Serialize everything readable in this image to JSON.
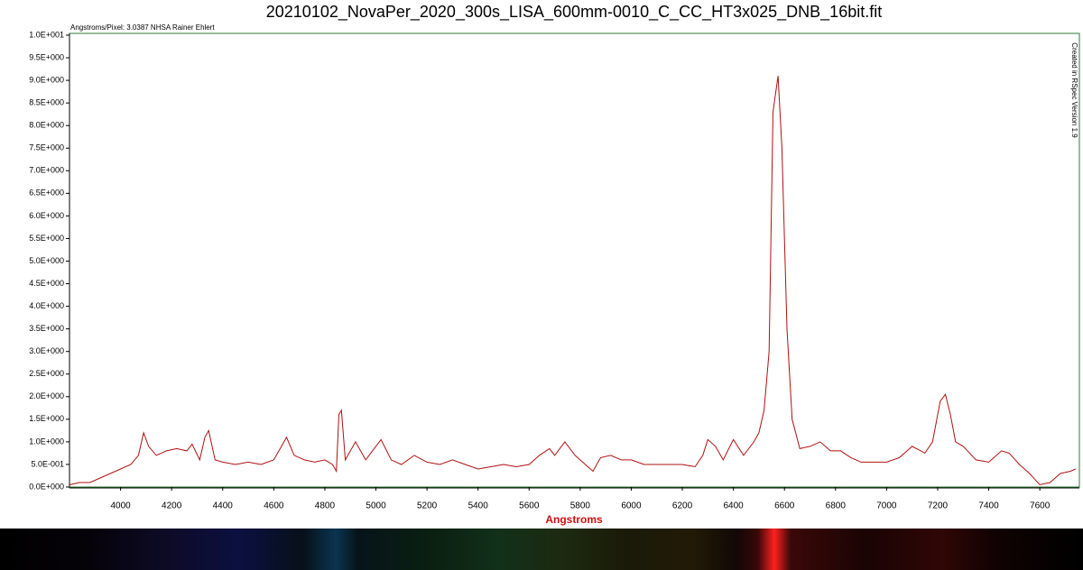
{
  "chart_data": {
    "type": "line",
    "title": "20210102_NovaPer_2020_300s_LISA_600mm-0010_C_CC_HT3x025_DNB_16bit.fit",
    "subtitle": "Angstroms/Pixel: 3.0387 NHSA Rainer Ehlert",
    "annotation": "Created in RSpec Version 1.9",
    "x_label": "Angstroms",
    "xlim": [
      3800,
      7755
    ],
    "xticks": [
      4000,
      4200,
      4400,
      4600,
      4800,
      5000,
      5200,
      5400,
      5600,
      5800,
      6000,
      6200,
      6400,
      6600,
      6800,
      7000,
      7200,
      7400,
      7600
    ],
    "ylim": [
      0,
      10
    ],
    "yticks": [
      {
        "value": 0,
        "label": "0.0E+000"
      },
      {
        "value": 0.5,
        "label": "5.0E-001"
      },
      {
        "value": 1,
        "label": "1.0E+000"
      },
      {
        "value": 1.5,
        "label": "1.5E+000"
      },
      {
        "value": 2,
        "label": "2.0E+000"
      },
      {
        "value": 2.5,
        "label": "2.5E+000"
      },
      {
        "value": 3,
        "label": "3.0E+000"
      },
      {
        "value": 3.5,
        "label": "3.5E+000"
      },
      {
        "value": 4,
        "label": "4.0E+000"
      },
      {
        "value": 4.5,
        "label": "4.5E+000"
      },
      {
        "value": 5,
        "label": "5.0E+000"
      },
      {
        "value": 5.5,
        "label": "5.5E+000"
      },
      {
        "value": 6,
        "label": "6.0E+000"
      },
      {
        "value": 6.5,
        "label": "6.5E+000"
      },
      {
        "value": 7,
        "label": "7.0E+000"
      },
      {
        "value": 7.5,
        "label": "7.5E+000"
      },
      {
        "value": 8,
        "label": "8.0E+000"
      },
      {
        "value": 8.5,
        "label": "8.5E+000"
      },
      {
        "value": 9,
        "label": "9.0E+000"
      },
      {
        "value": 9.5,
        "label": "9.5E+000"
      },
      {
        "value": 10,
        "label": "1.0E+001"
      }
    ],
    "color": "#b01010",
    "x": [
      3800,
      3840,
      3880,
      3920,
      3960,
      4000,
      4040,
      4070,
      4090,
      4110,
      4140,
      4180,
      4220,
      4260,
      4280,
      4310,
      4330,
      4345,
      4370,
      4400,
      4450,
      4500,
      4550,
      4600,
      4640,
      4650,
      4680,
      4720,
      4760,
      4800,
      4830,
      4845,
      4855,
      4865,
      4880,
      4920,
      4960,
      5000,
      5020,
      5060,
      5100,
      5150,
      5200,
      5250,
      5300,
      5350,
      5400,
      5450,
      5500,
      5550,
      5600,
      5640,
      5680,
      5700,
      5740,
      5780,
      5820,
      5850,
      5880,
      5920,
      5960,
      6000,
      6050,
      6100,
      6150,
      6200,
      6250,
      6280,
      6300,
      6330,
      6360,
      6400,
      6440,
      6480,
      6500,
      6520,
      6540,
      6555,
      6575,
      6590,
      6610,
      6630,
      6660,
      6700,
      6740,
      6780,
      6820,
      6860,
      6900,
      6950,
      7000,
      7050,
      7100,
      7150,
      7180,
      7210,
      7230,
      7250,
      7270,
      7300,
      7350,
      7400,
      7450,
      7480,
      7520,
      7560,
      7600,
      7640,
      7680,
      7720,
      7740
    ],
    "values": [
      0.05,
      0.1,
      0.1,
      0.2,
      0.3,
      0.4,
      0.5,
      0.7,
      1.2,
      0.9,
      0.7,
      0.8,
      0.85,
      0.8,
      0.95,
      0.6,
      1.1,
      1.25,
      0.6,
      0.55,
      0.5,
      0.55,
      0.5,
      0.6,
      1.0,
      1.1,
      0.7,
      0.6,
      0.55,
      0.6,
      0.5,
      0.35,
      1.6,
      1.7,
      0.6,
      1.0,
      0.6,
      0.9,
      1.05,
      0.6,
      0.5,
      0.7,
      0.55,
      0.5,
      0.6,
      0.5,
      0.4,
      0.45,
      0.5,
      0.45,
      0.5,
      0.7,
      0.85,
      0.7,
      1.0,
      0.7,
      0.5,
      0.35,
      0.65,
      0.7,
      0.6,
      0.6,
      0.5,
      0.5,
      0.5,
      0.5,
      0.45,
      0.7,
      1.05,
      0.9,
      0.6,
      1.05,
      0.7,
      1.0,
      1.2,
      1.7,
      3.0,
      8.3,
      9.1,
      7.5,
      3.5,
      1.5,
      0.85,
      0.9,
      1.0,
      0.8,
      0.8,
      0.65,
      0.55,
      0.55,
      0.55,
      0.65,
      0.9,
      0.75,
      1.0,
      1.9,
      2.05,
      1.6,
      1.0,
      0.9,
      0.6,
      0.55,
      0.8,
      0.75,
      0.5,
      0.3,
      0.05,
      0.1,
      0.3,
      0.35,
      0.4
    ]
  }
}
